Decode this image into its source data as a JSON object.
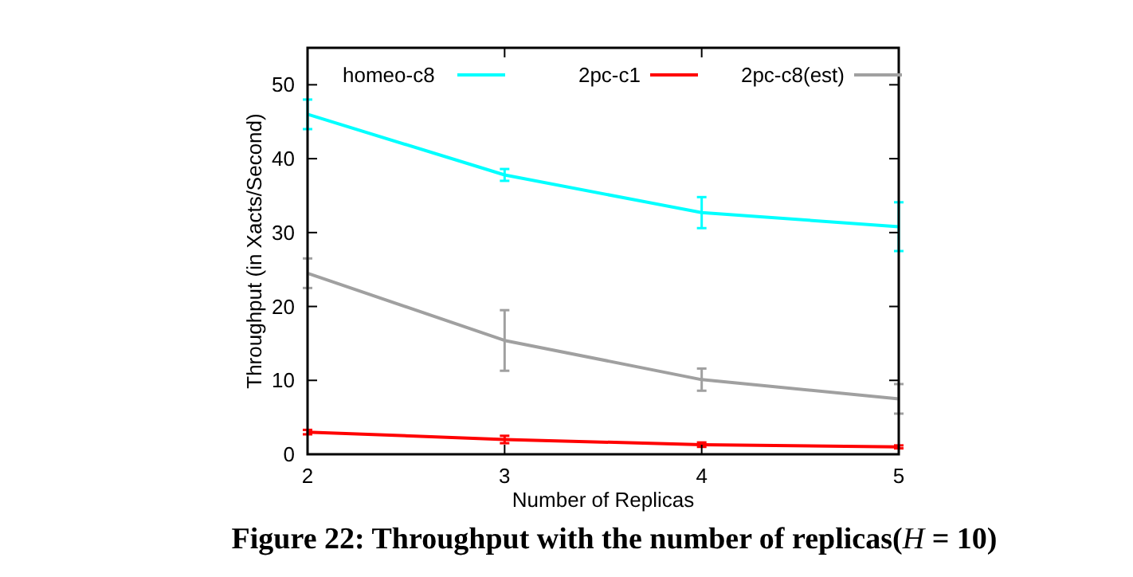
{
  "chart_data": {
    "type": "line",
    "title": "Figure 22: Throughput with the number of replicas(H = 10)",
    "xlabel": "Number of Replicas",
    "ylabel": "Throughput (in Xacts/Second)",
    "x": [
      2,
      3,
      4,
      5
    ],
    "xlim": [
      2,
      5
    ],
    "xticks": [
      2,
      3,
      4,
      5
    ],
    "ylim": [
      0,
      55
    ],
    "yticks": [
      0,
      10,
      20,
      30,
      40,
      50
    ],
    "grid": false,
    "legend": "top",
    "marker": "none",
    "series": [
      {
        "name": "homeo-c8",
        "color": "#00ffff",
        "values": [
          46.0,
          37.8,
          32.7,
          30.8
        ],
        "errors": [
          2.0,
          0.8,
          2.1,
          3.3
        ]
      },
      {
        "name": "2pc-c1",
        "color": "#ff0000",
        "values": [
          3.0,
          2.0,
          1.3,
          1.0
        ],
        "errors": [
          0.3,
          0.5,
          0.3,
          0.2
        ]
      },
      {
        "name": "2pc-c8(est)",
        "color": "#a0a0a0",
        "values": [
          24.5,
          15.4,
          10.1,
          7.5
        ],
        "errors": [
          2.0,
          4.1,
          1.5,
          2.0
        ]
      }
    ]
  }
}
